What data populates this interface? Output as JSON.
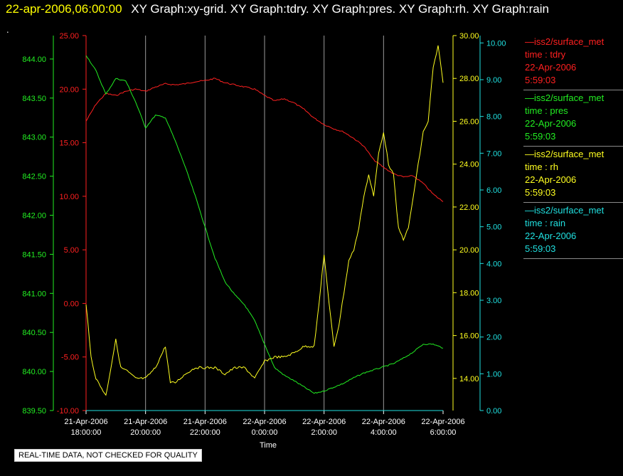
{
  "header": {
    "timestamp": "22-apr-2006,06:00:00",
    "titles": "XY Graph:xy-grid.  XY Graph:tdry.  XY Graph:pres.  XY Graph:rh.  XY Graph:rain"
  },
  "dot": ".",
  "quality_notice": "REAL-TIME DATA, NOT CHECKED FOR QUALITY",
  "colors": {
    "tdry": "#ff2020",
    "pres": "#22ee22",
    "rh": "#ffff20",
    "rain": "#20e0e0",
    "grid": "#9a9a9a"
  },
  "legend": [
    {
      "series": "—iss2/surface_met",
      "field": "time : tdry",
      "date": "22-Apr-2006",
      "time": "5:59:03",
      "color": "#ff2020"
    },
    {
      "series": "—iss2/surface_met",
      "field": "time : pres",
      "date": "22-Apr-2006",
      "time": "5:59:03",
      "color": "#22ee22"
    },
    {
      "series": "—iss2/surface_met",
      "field": "time : rh",
      "date": "22-Apr-2006",
      "time": "5:59:03",
      "color": "#ffff20"
    },
    {
      "series": "—iss2/surface_met",
      "field": "time : rain",
      "date": "22-Apr-2006",
      "time": "5:59:03",
      "color": "#20e0e0"
    }
  ],
  "chart_data": {
    "type": "line",
    "xlabel": "Time",
    "x_ticks": [
      {
        "date": "21-Apr-2006",
        "time": "18:00:00",
        "x": "2006-04-21T18:00"
      },
      {
        "date": "21-Apr-2006",
        "time": "20:00:00",
        "x": "2006-04-21T20:00"
      },
      {
        "date": "21-Apr-2006",
        "time": "22:00:00",
        "x": "2006-04-21T22:00"
      },
      {
        "date": "22-Apr-2006",
        "time": "0:00:00",
        "x": "2006-04-22T00:00"
      },
      {
        "date": "22-Apr-2006",
        "time": "2:00:00",
        "x": "2006-04-22T02:00"
      },
      {
        "date": "22-Apr-2006",
        "time": "4:00:00",
        "x": "2006-04-22T04:00"
      },
      {
        "date": "22-Apr-2006",
        "time": "6:00:00",
        "x": "2006-04-22T06:00"
      }
    ],
    "xlim": [
      "2006-04-21T18:00",
      "2006-04-22T06:00"
    ],
    "grid": true,
    "axes": {
      "tdry": {
        "side": "left-inner",
        "ylim": [
          -10,
          25
        ],
        "ticks": [
          "-10.00",
          "-5.00",
          "0.00",
          "5.00",
          "10.00",
          "15.00",
          "20.00",
          "25.00"
        ]
      },
      "pres": {
        "side": "left-outer",
        "ylim": [
          839.5,
          844.3
        ],
        "ticks": [
          "839.50",
          "840.00",
          "840.50",
          "841.00",
          "841.50",
          "842.00",
          "842.50",
          "843.00",
          "843.50",
          "844.00"
        ]
      },
      "rh": {
        "side": "right-inner",
        "ylim": [
          12.5,
          30.0
        ],
        "ticks": [
          "14.00",
          "16.00",
          "18.00",
          "20.00",
          "22.00",
          "24.00",
          "26.00",
          "28.00",
          "30.00"
        ]
      },
      "rain": {
        "side": "right-outer",
        "ylim": [
          0.0,
          10.2
        ],
        "ticks": [
          "0.00",
          "1.00",
          "2.00",
          "3.00",
          "4.00",
          "5.00",
          "6.00",
          "7.00",
          "8.00",
          "9.00",
          "10.00"
        ]
      }
    },
    "series": [
      {
        "name": "time : tdry",
        "axis": "tdry",
        "x": [
          "2006-04-21T18:00",
          "2006-04-21T18:20",
          "2006-04-21T18:40",
          "2006-04-21T19:00",
          "2006-04-21T19:20",
          "2006-04-21T19:40",
          "2006-04-21T20:00",
          "2006-04-21T20:20",
          "2006-04-21T20:40",
          "2006-04-21T21:00",
          "2006-04-21T21:20",
          "2006-04-21T21:40",
          "2006-04-21T22:00",
          "2006-04-21T22:20",
          "2006-04-21T22:40",
          "2006-04-21T23:00",
          "2006-04-21T23:20",
          "2006-04-21T23:40",
          "2006-04-22T00:00",
          "2006-04-22T00:20",
          "2006-04-22T00:40",
          "2006-04-22T01:00",
          "2006-04-22T01:20",
          "2006-04-22T01:40",
          "2006-04-22T02:00",
          "2006-04-22T02:20",
          "2006-04-22T02:40",
          "2006-04-22T03:00",
          "2006-04-22T03:20",
          "2006-04-22T03:40",
          "2006-04-22T04:00",
          "2006-04-22T04:20",
          "2006-04-22T04:40",
          "2006-04-22T05:00",
          "2006-04-22T05:20",
          "2006-04-22T05:40",
          "2006-04-22T06:00"
        ],
        "y": [
          17.0,
          18.6,
          19.6,
          19.4,
          19.8,
          20.0,
          19.8,
          20.2,
          20.5,
          20.4,
          20.5,
          20.7,
          20.8,
          21.0,
          20.6,
          20.4,
          20.2,
          20.0,
          19.4,
          18.9,
          19.1,
          18.7,
          18.1,
          17.3,
          16.7,
          16.3,
          16.0,
          15.4,
          14.7,
          13.4,
          12.7,
          12.1,
          11.8,
          11.9,
          11.2,
          10.2,
          9.5
        ]
      },
      {
        "name": "time : pres",
        "axis": "pres",
        "x": [
          "2006-04-21T18:00",
          "2006-04-21T18:20",
          "2006-04-21T18:40",
          "2006-04-21T19:00",
          "2006-04-21T19:20",
          "2006-04-21T19:40",
          "2006-04-21T20:00",
          "2006-04-21T20:20",
          "2006-04-21T20:40",
          "2006-04-21T21:00",
          "2006-04-21T21:20",
          "2006-04-21T21:40",
          "2006-04-21T22:00",
          "2006-04-21T22:20",
          "2006-04-21T22:40",
          "2006-04-21T23:00",
          "2006-04-21T23:20",
          "2006-04-21T23:40",
          "2006-04-22T00:00",
          "2006-04-22T00:20",
          "2006-04-22T00:40",
          "2006-04-22T01:00",
          "2006-04-22T01:20",
          "2006-04-22T01:40",
          "2006-04-22T02:00",
          "2006-04-22T02:20",
          "2006-04-22T02:40",
          "2006-04-22T03:00",
          "2006-04-22T03:20",
          "2006-04-22T03:40",
          "2006-04-22T04:00",
          "2006-04-22T04:20",
          "2006-04-22T04:40",
          "2006-04-22T05:00",
          "2006-04-22T05:20",
          "2006-04-22T05:40",
          "2006-04-22T06:00"
        ],
        "y": [
          844.05,
          843.85,
          843.55,
          843.75,
          843.72,
          843.45,
          843.12,
          843.28,
          843.25,
          842.95,
          842.62,
          842.25,
          841.85,
          841.45,
          841.15,
          840.98,
          840.85,
          840.65,
          840.35,
          840.05,
          839.95,
          839.88,
          839.8,
          839.72,
          839.75,
          839.8,
          839.85,
          839.92,
          839.98,
          840.02,
          840.06,
          840.1,
          840.17,
          840.25,
          840.35,
          840.35,
          840.3
        ]
      },
      {
        "name": "time : rh",
        "axis": "rh",
        "x": [
          "2006-04-21T18:00",
          "2006-04-21T18:10",
          "2006-04-21T18:20",
          "2006-04-21T18:40",
          "2006-04-21T19:00",
          "2006-04-21T19:10",
          "2006-04-21T19:20",
          "2006-04-21T19:40",
          "2006-04-21T20:00",
          "2006-04-21T20:20",
          "2006-04-21T20:40",
          "2006-04-21T20:50",
          "2006-04-21T21:00",
          "2006-04-21T21:20",
          "2006-04-21T21:40",
          "2006-04-21T22:00",
          "2006-04-21T22:20",
          "2006-04-21T22:40",
          "2006-04-21T23:00",
          "2006-04-21T23:20",
          "2006-04-21T23:40",
          "2006-04-22T00:00",
          "2006-04-22T00:20",
          "2006-04-22T00:40",
          "2006-04-22T01:00",
          "2006-04-22T01:20",
          "2006-04-22T01:40",
          "2006-04-22T01:50",
          "2006-04-22T02:00",
          "2006-04-22T02:10",
          "2006-04-22T02:20",
          "2006-04-22T02:30",
          "2006-04-22T02:40",
          "2006-04-22T02:50",
          "2006-04-22T03:00",
          "2006-04-22T03:10",
          "2006-04-22T03:20",
          "2006-04-22T03:30",
          "2006-04-22T03:40",
          "2006-04-22T03:50",
          "2006-04-22T04:00",
          "2006-04-22T04:10",
          "2006-04-22T04:20",
          "2006-04-22T04:30",
          "2006-04-22T04:40",
          "2006-04-22T04:50",
          "2006-04-22T05:00",
          "2006-04-22T05:10",
          "2006-04-22T05:20",
          "2006-04-22T05:30",
          "2006-04-22T05:40",
          "2006-04-22T05:50",
          "2006-04-22T06:00"
        ],
        "y": [
          17.5,
          15.0,
          14.0,
          13.2,
          15.8,
          14.5,
          14.4,
          14.0,
          14.0,
          14.5,
          15.5,
          13.8,
          13.8,
          14.2,
          14.5,
          14.5,
          14.5,
          14.2,
          14.5,
          14.5,
          14.0,
          14.8,
          15.0,
          15.0,
          15.2,
          15.5,
          15.5,
          17.5,
          19.8,
          17.5,
          15.5,
          16.5,
          18.0,
          19.5,
          20.0,
          21.0,
          22.5,
          23.5,
          22.5,
          24.5,
          25.5,
          24.0,
          23.5,
          21.0,
          20.5,
          21.0,
          22.5,
          24.0,
          25.5,
          26.0,
          28.5,
          29.5,
          27.8
        ]
      },
      {
        "name": "time : rain",
        "axis": "rain",
        "x": [
          "2006-04-21T18:00",
          "2006-04-22T06:00"
        ],
        "y": [
          0.0,
          0.0
        ]
      }
    ]
  }
}
